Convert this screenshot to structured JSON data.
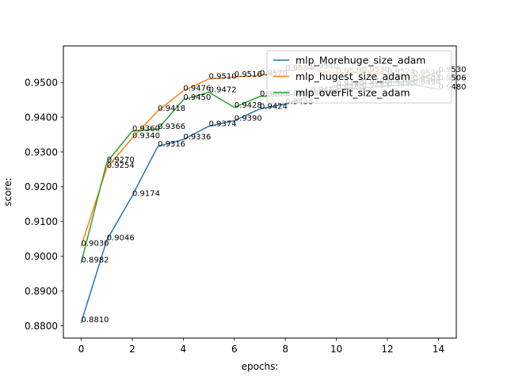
{
  "chart_data": {
    "type": "line",
    "title": "",
    "xlabel": "epochs:",
    "ylabel": "score:",
    "xlim": [
      -0.7,
      14.7
    ],
    "ylim": [
      0.8765,
      0.9605
    ],
    "x_ticks": [
      "0",
      "2",
      "4",
      "6",
      "8",
      "10",
      "12",
      "14"
    ],
    "y_ticks": [
      "0.8800",
      "0.8900",
      "0.9000",
      "0.9100",
      "0.9200",
      "0.9300",
      "0.9400",
      "0.9500"
    ],
    "grid": false,
    "legend_position": "top-right",
    "x": [
      0,
      1,
      2,
      3,
      4,
      5,
      6,
      7,
      8,
      9,
      10,
      11,
      12,
      13,
      14
    ],
    "series": [
      {
        "name": "mlp_Morehuge_size_adam",
        "color": "#1f77b4",
        "values": [
          0.881,
          0.9046,
          0.9174,
          0.9316,
          0.9336,
          0.9374,
          0.939,
          0.9424,
          0.9438,
          0.9462,
          0.948,
          0.9484,
          0.949,
          0.9494,
          0.948
        ],
        "labels": [
          "0.8810",
          "0.9046",
          "0.9174",
          "0.9316",
          "0.9336",
          "0.9374",
          "0.9390",
          "0.9424",
          "0.9438",
          "0.9462",
          "0.9480",
          "0.9484",
          "0.9490",
          "0.9494",
          "0.9480"
        ]
      },
      {
        "name": "mlp_hugest_size_adam",
        "color": "#ff7f0e",
        "values": [
          0.903,
          0.9254,
          0.934,
          0.9418,
          0.9476,
          0.951,
          0.9516,
          0.952,
          0.9534,
          0.954,
          0.9526,
          0.953,
          0.9524,
          0.952,
          0.9506
        ],
        "labels": [
          "0.9030",
          "0.9254",
          "0.9340",
          "0.9418",
          "0.9476",
          "0.9510",
          "0.9516",
          "0.9520",
          "0.9534",
          "0.9540",
          "0.9526",
          "0.9530",
          "0.9524",
          "0.9520",
          "0.9506"
        ]
      },
      {
        "name": "mlp_overFit_size_adam",
        "color": "#2ca02c",
        "values": [
          0.8982,
          0.927,
          0.936,
          0.9366,
          0.945,
          0.9472,
          0.9428,
          0.946,
          0.9462,
          0.9472,
          0.949,
          0.9496,
          0.95,
          0.9504,
          0.953
        ],
        "labels": [
          "0.8982",
          "0.9270",
          "0.9360",
          "0.9366",
          "0.9450",
          "0.9472",
          "0.9428",
          "0.9460",
          "0.9462",
          "0.9472",
          "0.9490",
          "0.9496",
          "0.9500",
          "0.9504",
          "0.9530"
        ]
      }
    ]
  }
}
